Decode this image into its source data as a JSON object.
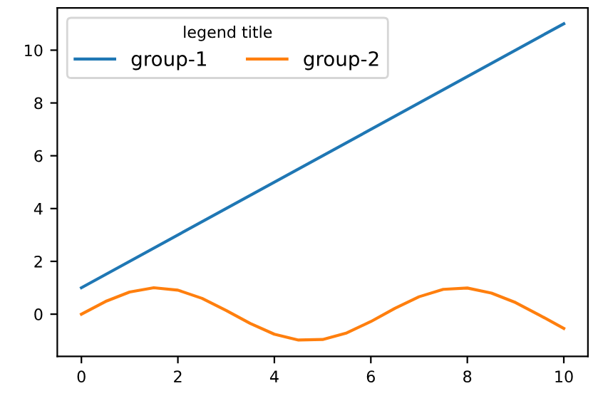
{
  "chart_data": {
    "type": "line",
    "legend_title": "legend title",
    "legend": "top left",
    "series": [
      {
        "name": "group-1",
        "color": "#1f77b4",
        "x": [
          0,
          10
        ],
        "values": [
          1,
          11
        ]
      },
      {
        "name": "group-2",
        "color": "#ff7f0e",
        "x": [
          0,
          0.5,
          1,
          1.5,
          2,
          2.5,
          3,
          3.5,
          4,
          4.5,
          5,
          5.5,
          6,
          6.5,
          7,
          7.5,
          8,
          8.5,
          9,
          9.5,
          10
        ],
        "values": [
          0,
          0.48,
          0.84,
          1.0,
          0.91,
          0.6,
          0.14,
          -0.35,
          -0.76,
          -0.98,
          -0.96,
          -0.71,
          -0.28,
          0.22,
          0.66,
          0.94,
          0.99,
          0.8,
          0.44,
          -0.04,
          -0.54
        ]
      }
    ],
    "xlim": [
      -0.5,
      10.5
    ],
    "ylim": [
      -1.6,
      11.6
    ],
    "xticks": [
      0,
      2,
      4,
      6,
      8,
      10
    ],
    "yticks": [
      0,
      2,
      4,
      6,
      8,
      10
    ],
    "grid": false,
    "marker": "none",
    "line_style": "solid"
  }
}
